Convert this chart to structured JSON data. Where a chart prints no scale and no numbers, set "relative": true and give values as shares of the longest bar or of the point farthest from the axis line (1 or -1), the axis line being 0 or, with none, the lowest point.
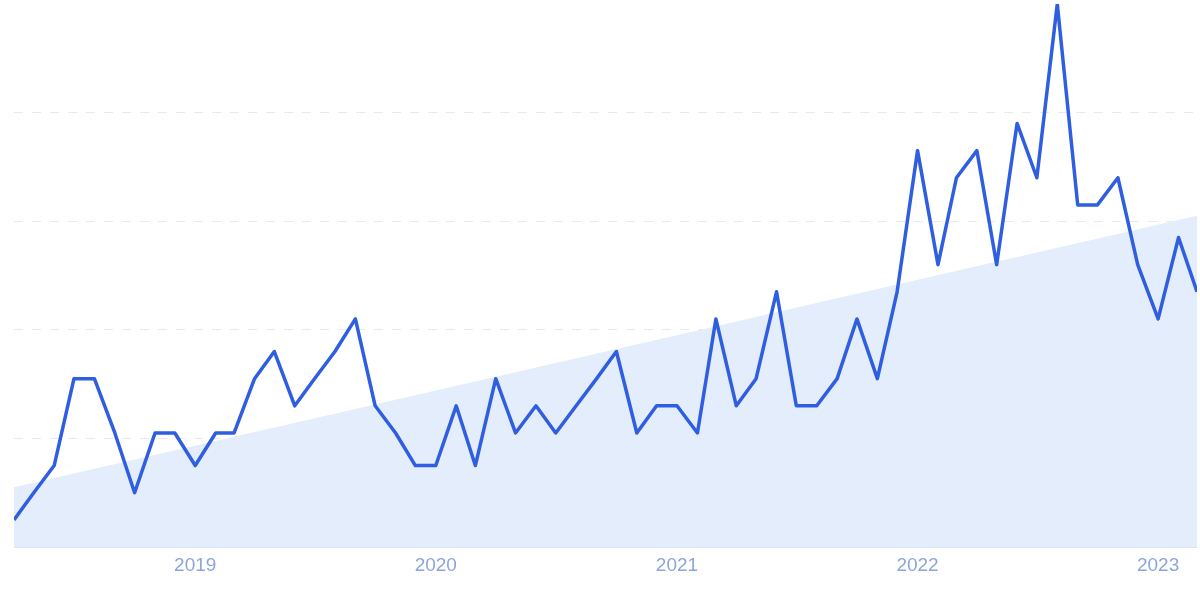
{
  "chart_data": {
    "type": "line",
    "relative": true,
    "grid": "y",
    "marker": "none",
    "line_style": "solid",
    "x": [
      "2018-04",
      "2018-05",
      "2018-06",
      "2018-07",
      "2018-08",
      "2018-09",
      "2018-10",
      "2018-11",
      "2018-12",
      "2019-01",
      "2019-02",
      "2019-03",
      "2019-04",
      "2019-05",
      "2019-06",
      "2019-07",
      "2019-08",
      "2019-09",
      "2019-10",
      "2019-11",
      "2019-12",
      "2020-01",
      "2020-02",
      "2020-03",
      "2020-04",
      "2020-05",
      "2020-06",
      "2020-07",
      "2020-08",
      "2020-09",
      "2020-10",
      "2020-11",
      "2020-12",
      "2021-01",
      "2021-02",
      "2021-03",
      "2021-04",
      "2021-05",
      "2021-06",
      "2021-07",
      "2021-08",
      "2021-09",
      "2021-10",
      "2021-11",
      "2021-12",
      "2022-01",
      "2022-02",
      "2022-03",
      "2022-04",
      "2022-05",
      "2022-06",
      "2022-07",
      "2022-08",
      "2022-09",
      "2022-10",
      "2022-11",
      "2022-12",
      "2023-01",
      "2023-02",
      "2023-03"
    ],
    "xlim": [
      "2018-04",
      "2023-03"
    ],
    "xticks": [
      "2019",
      "2020",
      "2021",
      "2022",
      "2023"
    ],
    "series": [
      {
        "type": "area",
        "color": "#e3edfb",
        "x": [
          "2018-04",
          "2023-03"
        ],
        "values": [
          0.11,
          0.61
        ]
      },
      {
        "color": "#2f5fe0",
        "values": [
          0.05,
          0.1,
          0.15,
          0.31,
          0.31,
          0.21,
          0.1,
          0.21,
          0.21,
          0.15,
          0.21,
          0.21,
          0.31,
          0.36,
          0.26,
          0.31,
          0.36,
          0.42,
          0.26,
          0.21,
          0.15,
          0.15,
          0.26,
          0.15,
          0.31,
          0.21,
          0.26,
          0.21,
          0.26,
          0.31,
          0.36,
          0.21,
          0.26,
          0.26,
          0.21,
          0.42,
          0.26,
          0.31,
          0.47,
          0.26,
          0.26,
          0.31,
          0.42,
          0.31,
          0.47,
          0.73,
          0.52,
          0.68,
          0.73,
          0.52,
          0.78,
          0.68,
          1.0,
          0.63,
          0.63,
          0.68,
          0.52,
          0.42,
          0.57,
          0.47
        ]
      }
    ]
  }
}
